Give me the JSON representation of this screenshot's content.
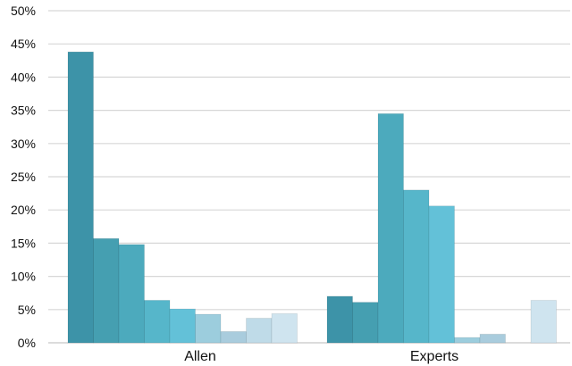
{
  "chart_data": {
    "type": "bar",
    "title": "",
    "xlabel": "",
    "ylabel": "",
    "ylim": [
      0,
      50
    ],
    "yticks": [
      0,
      5,
      10,
      15,
      20,
      25,
      30,
      35,
      40,
      45,
      50
    ],
    "ytick_labels": [
      "0%",
      "5%",
      "10%",
      "15%",
      "20%",
      "25%",
      "30%",
      "35%",
      "40%",
      "45%",
      "50%"
    ],
    "grid": true,
    "legend": "none",
    "categories": [
      "Allen",
      "Experts"
    ],
    "series": [
      {
        "values": [
          43.8,
          7.0
        ],
        "color": "#3d93a8"
      },
      {
        "values": [
          15.7,
          6.1
        ],
        "color": "#459fb1"
      },
      {
        "values": [
          14.8,
          34.5
        ],
        "color": "#4caabd"
      },
      {
        "values": [
          6.4,
          23.0
        ],
        "color": "#56b6ca"
      },
      {
        "values": [
          5.1,
          20.6
        ],
        "color": "#63c1d8"
      },
      {
        "values": [
          4.3,
          0.8
        ],
        "color": "#9ccddd"
      },
      {
        "values": [
          1.7,
          1.3
        ],
        "color": "#a9ccdd"
      },
      {
        "values": [
          3.7,
          0.0
        ],
        "color": "#bfdbe8"
      },
      {
        "values": [
          4.4,
          6.4
        ],
        "color": "#cfe4ef"
      }
    ]
  }
}
